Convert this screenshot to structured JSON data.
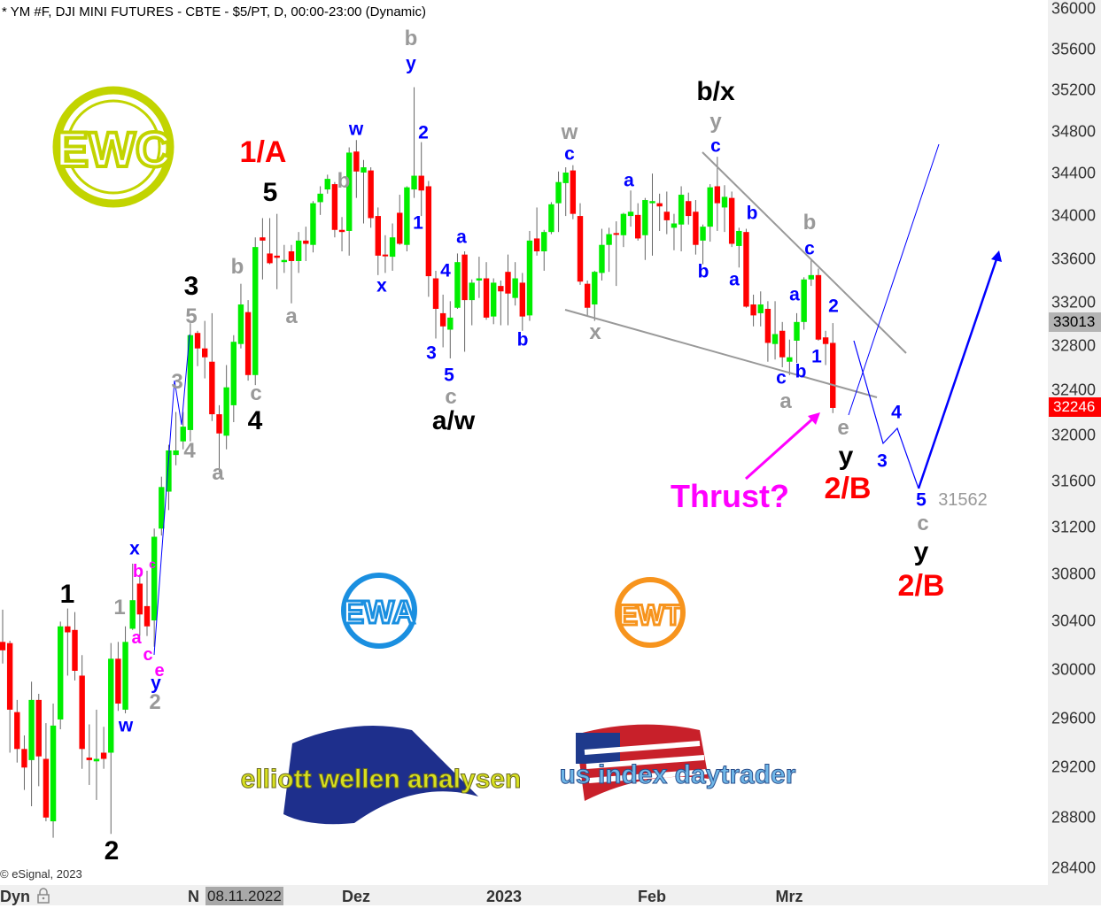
{
  "header": {
    "title": "* YM #F, DJI MINI FUTURES - CBTE - $5/PT, D, 00:00-23:00 (Dynamic)"
  },
  "copyright": "© eSignal, 2023",
  "colors": {
    "up": "#00ee00",
    "down": "#ff0000",
    "wick": "#666666",
    "last_price": "#ff0000",
    "marker": "#b4b4b4",
    "channel": "#999999",
    "projection": "#0000ff",
    "thrust": "#ff00ff"
  },
  "x_axis": {
    "mode_label": "Dyn",
    "lock_icon": "lock-icon",
    "cursor_date": "08.11.2022",
    "partial_label": "N",
    "ticks": [
      "Dez",
      "2023",
      "Feb",
      "Mrz"
    ]
  },
  "price_markers": {
    "marker": "33013",
    "last": "32246"
  },
  "logos": {
    "ewc": "EWC",
    "ewa": "EWA",
    "ewt": "EWT",
    "elliott_wellen": "elliott wellen analysen",
    "us_index": "us index daytrader"
  },
  "labels": {
    "black": [
      "1",
      "2",
      "3",
      "4",
      "5",
      "a/w",
      "b/x",
      "y",
      "y"
    ],
    "red": [
      "1/A",
      "2/B",
      "2/B"
    ],
    "gray": [
      "b",
      "w",
      "y",
      "b",
      "a",
      "e",
      "c",
      "x",
      "c",
      "a",
      "b",
      "5",
      "c",
      "a",
      "3",
      "4",
      "1",
      "2",
      "b"
    ],
    "blue": [
      "y",
      "w",
      "2",
      "1",
      "x",
      "4",
      "a",
      "3",
      "5",
      "b",
      "c",
      "a",
      "b",
      "c",
      "b",
      "a",
      "c",
      "a",
      "2",
      "1",
      "c",
      "b",
      "x",
      "w",
      "y",
      "4",
      "3",
      "5"
    ],
    "magenta": [
      "b",
      "c",
      "a",
      "c",
      "e"
    ],
    "thrust": "Thrust?",
    "target": "31562"
  },
  "chart_data": {
    "type": "candlestick",
    "title": "* YM #F, DJI MINI FUTURES - CBTE - $5/PT, D, 00:00-23:00 (Dynamic)",
    "scale": "log",
    "ylim": [
      28400,
      36000
    ],
    "y_ticks": [
      36000,
      35600,
      35200,
      34800,
      34400,
      34000,
      33600,
      33200,
      32800,
      32400,
      32000,
      31600,
      31200,
      30800,
      30400,
      30000,
      29600,
      29200,
      28800,
      28400
    ],
    "x_ticks": [
      "Dez",
      "2023",
      "Feb",
      "Mrz"
    ],
    "grid": false,
    "last_price": 32246,
    "marker_price": 33013,
    "target_price": 31562,
    "ohlc": [
      [
        30230,
        30500,
        30050,
        30160
      ],
      [
        30220,
        30240,
        29320,
        29670
      ],
      [
        29650,
        29750,
        29240,
        29350
      ],
      [
        29350,
        29460,
        29020,
        29200
      ],
      [
        29260,
        29900,
        28890,
        29750
      ],
      [
        29750,
        29800,
        29050,
        29290
      ],
      [
        29270,
        29560,
        28770,
        28800
      ],
      [
        28770,
        29720,
        28640,
        29540
      ],
      [
        29590,
        30400,
        29510,
        30360
      ],
      [
        30360,
        30510,
        29950,
        30310
      ],
      [
        30330,
        30480,
        29910,
        29990
      ],
      [
        29950,
        30120,
        29190,
        29350
      ],
      [
        29280,
        29550,
        29060,
        29260
      ],
      [
        29250,
        29670,
        28940,
        29270
      ],
      [
        29320,
        29530,
        29190,
        29270
      ],
      [
        29320,
        30220,
        28670,
        30090
      ],
      [
        30090,
        30230,
        29660,
        29720
      ],
      [
        29670,
        30360,
        29640,
        30230
      ],
      [
        30340,
        30890,
        30330,
        30580
      ],
      [
        30720,
        30800,
        30280,
        30460
      ],
      [
        30530,
        30830,
        30280,
        30360
      ],
      [
        30410,
        31190,
        30190,
        31120
      ],
      [
        31190,
        31640,
        31130,
        31550
      ],
      [
        31510,
        31920,
        31350,
        31870
      ],
      [
        31830,
        32210,
        31740,
        31870
      ],
      [
        31950,
        32210,
        31880,
        32080
      ],
      [
        32050,
        33010,
        31950,
        32900
      ],
      [
        32920,
        32940,
        32620,
        32780
      ],
      [
        32780,
        33030,
        32510,
        32700
      ],
      [
        32660,
        33100,
        32130,
        32190
      ],
      [
        32190,
        32270,
        31680,
        32020
      ],
      [
        32000,
        32630,
        31880,
        32430
      ],
      [
        32270,
        32900,
        32120,
        32840
      ],
      [
        32820,
        33370,
        32780,
        33180
      ],
      [
        33110,
        33220,
        32490,
        32540
      ],
      [
        32540,
        33800,
        32450,
        33710
      ],
      [
        33800,
        33980,
        33410,
        33770
      ],
      [
        33650,
        33980,
        33550,
        33560
      ],
      [
        33630,
        34020,
        33320,
        33610
      ],
      [
        33570,
        33730,
        33470,
        33590
      ],
      [
        33670,
        33730,
        33190,
        33580
      ],
      [
        33580,
        33850,
        33470,
        33770
      ],
      [
        33770,
        33900,
        33580,
        33740
      ],
      [
        33730,
        34140,
        33660,
        34120
      ],
      [
        34130,
        34280,
        34010,
        34210
      ],
      [
        34250,
        34390,
        34210,
        34350
      ],
      [
        34300,
        34320,
        33800,
        33870
      ],
      [
        33870,
        33990,
        33670,
        33850
      ],
      [
        33860,
        34650,
        33630,
        34600
      ],
      [
        34610,
        34720,
        34170,
        34420
      ],
      [
        34410,
        34530,
        33930,
        34460
      ],
      [
        34430,
        34460,
        33890,
        33980
      ],
      [
        34000,
        34080,
        33450,
        33630
      ],
      [
        33640,
        33820,
        33470,
        33630
      ],
      [
        33620,
        33930,
        33490,
        33800
      ],
      [
        34030,
        34200,
        33730,
        33740
      ],
      [
        33730,
        34280,
        33670,
        34270
      ],
      [
        34250,
        35230,
        34170,
        34380
      ],
      [
        34380,
        34700,
        34000,
        34240
      ],
      [
        34280,
        34330,
        33250,
        33440
      ],
      [
        33420,
        33490,
        32870,
        33140
      ],
      [
        33100,
        33270,
        32790,
        32980
      ],
      [
        32950,
        33210,
        32690,
        33060
      ],
      [
        33150,
        33650,
        33140,
        33570
      ],
      [
        33640,
        33670,
        32750,
        33220
      ],
      [
        33220,
        33410,
        32990,
        33380
      ],
      [
        33400,
        33620,
        33240,
        33420
      ],
      [
        33420,
        33570,
        33040,
        33060
      ],
      [
        33070,
        33420,
        33000,
        33380
      ],
      [
        33350,
        33400,
        32990,
        33300
      ],
      [
        33480,
        33640,
        32990,
        33280
      ],
      [
        33240,
        33570,
        33170,
        33420
      ],
      [
        33380,
        33470,
        32940,
        33070
      ],
      [
        33080,
        33860,
        33030,
        33770
      ],
      [
        33790,
        34080,
        33630,
        33670
      ],
      [
        33670,
        33870,
        33490,
        33850
      ],
      [
        33850,
        34130,
        33830,
        34110
      ],
      [
        34120,
        34420,
        33850,
        34320
      ],
      [
        34310,
        34460,
        34000,
        34410
      ],
      [
        34430,
        34480,
        33970,
        34020
      ],
      [
        34000,
        34120,
        33360,
        33390
      ],
      [
        33370,
        33400,
        33070,
        33150
      ],
      [
        33180,
        33490,
        33030,
        33480
      ],
      [
        33470,
        33880,
        33400,
        33730
      ],
      [
        33730,
        33890,
        33480,
        33830
      ],
      [
        33840,
        33950,
        33350,
        33830
      ],
      [
        33820,
        34030,
        33710,
        34020
      ],
      [
        34000,
        34240,
        33900,
        34040
      ],
      [
        34010,
        34120,
        33770,
        33790
      ],
      [
        33820,
        34170,
        33590,
        34150
      ],
      [
        34120,
        34400,
        33630,
        34140
      ],
      [
        34120,
        34210,
        33860,
        34090
      ],
      [
        34040,
        34230,
        33830,
        33960
      ],
      [
        33890,
        34020,
        33680,
        33930
      ],
      [
        33920,
        34280,
        33670,
        34200
      ],
      [
        34140,
        34220,
        33920,
        34000
      ],
      [
        34040,
        34150,
        33640,
        33730
      ],
      [
        33770,
        33920,
        33550,
        33900
      ],
      [
        33900,
        34300,
        33760,
        34270
      ],
      [
        34280,
        34560,
        33860,
        34120
      ],
      [
        34080,
        34290,
        33850,
        34180
      ],
      [
        34170,
        34230,
        33710,
        33740
      ],
      [
        33720,
        33890,
        33520,
        33860
      ],
      [
        33850,
        33880,
        33150,
        33160
      ],
      [
        33180,
        33270,
        32980,
        33080
      ],
      [
        33100,
        33300,
        32980,
        33180
      ],
      [
        33140,
        33210,
        32660,
        32830
      ],
      [
        32820,
        33210,
        32680,
        32910
      ],
      [
        32940,
        33020,
        32610,
        32700
      ],
      [
        32660,
        32860,
        32540,
        32700
      ],
      [
        32850,
        33100,
        32650,
        33020
      ],
      [
        33020,
        33430,
        32950,
        33410
      ],
      [
        33410,
        33590,
        33350,
        33450
      ],
      [
        33450,
        33510,
        32850,
        32860
      ],
      [
        32880,
        32940,
        32630,
        32820
      ],
      [
        32830,
        33010,
        32200,
        32246
      ]
    ]
  }
}
